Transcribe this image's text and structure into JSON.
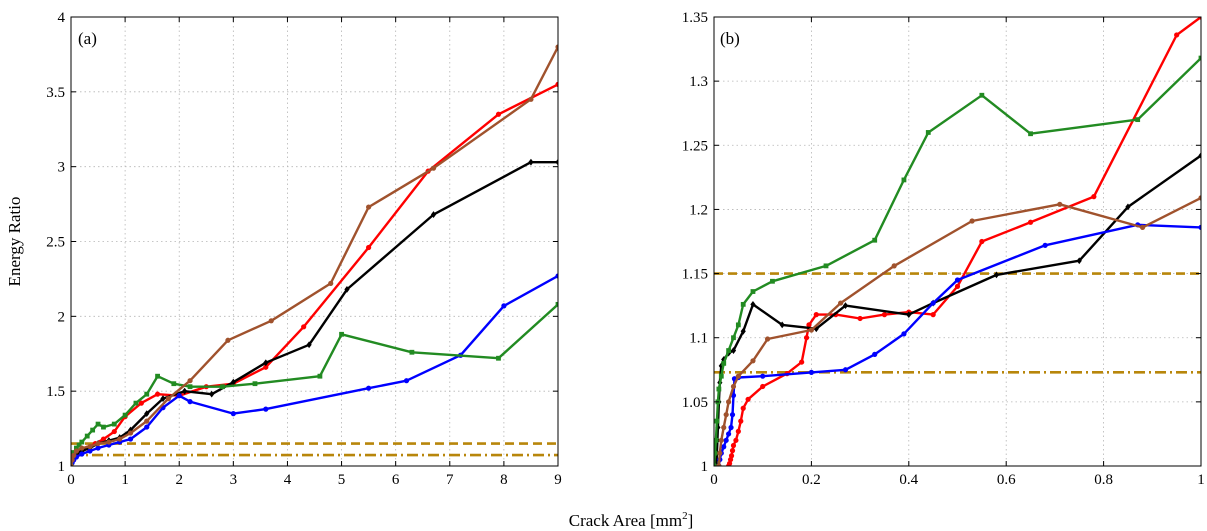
{
  "figure": {
    "xlabel_main": "Crack Area [mm",
    "xlabel_sup": "2",
    "xlabel_close": "]"
  },
  "chart_data": [
    {
      "type": "line",
      "panel_label": "(a)",
      "xlabel": "",
      "ylabel": "Energy Ratio",
      "xlim": [
        0,
        9
      ],
      "ylim": [
        1,
        4
      ],
      "xticks": [
        0,
        1,
        2,
        3,
        4,
        5,
        6,
        7,
        8,
        9
      ],
      "yticks": [
        1,
        1.5,
        2,
        2.5,
        3,
        3.5,
        4
      ],
      "xtick_labels": [
        "0",
        "1",
        "2",
        "3",
        "4",
        "5",
        "6",
        "7",
        "8",
        "9"
      ],
      "ytick_labels": [
        "1",
        "1.5",
        "2",
        "2.5",
        "3",
        "3.5",
        "4"
      ],
      "grid": true,
      "reference_lines": [
        {
          "y": 1.15,
          "style": "dashed",
          "color": "#b8860b"
        },
        {
          "y": 1.073,
          "style": "dash-dot",
          "color": "#b8860b"
        }
      ],
      "series": [
        {
          "color": "#ff0000",
          "marker": "circle",
          "x": [
            0,
            0.02,
            0.05,
            0.1,
            0.2,
            0.3,
            0.45,
            0.6,
            0.8,
            1.0,
            1.3,
            1.6,
            2.0,
            2.5,
            3.0,
            3.6,
            4.3,
            5.5,
            6.6,
            7.9,
            9.0
          ],
          "y": [
            1.0,
            1.03,
            1.06,
            1.08,
            1.1,
            1.12,
            1.15,
            1.18,
            1.23,
            1.33,
            1.42,
            1.48,
            1.47,
            1.53,
            1.55,
            1.66,
            1.93,
            2.46,
            2.97,
            3.35,
            3.55
          ]
        },
        {
          "color": "#000000",
          "marker": "diamond",
          "x": [
            0,
            0.02,
            0.05,
            0.1,
            0.2,
            0.35,
            0.5,
            0.7,
            0.9,
            1.1,
            1.4,
            1.7,
            2.1,
            2.6,
            3.0,
            3.6,
            4.4,
            5.1,
            6.7,
            8.5,
            9.0
          ],
          "y": [
            1.0,
            1.04,
            1.06,
            1.08,
            1.1,
            1.12,
            1.15,
            1.17,
            1.19,
            1.24,
            1.35,
            1.45,
            1.5,
            1.48,
            1.56,
            1.69,
            1.81,
            2.18,
            2.68,
            3.03,
            3.03
          ]
        },
        {
          "color": "#0000ff",
          "marker": "circle",
          "x": [
            0,
            0.02,
            0.05,
            0.1,
            0.2,
            0.35,
            0.5,
            0.7,
            0.9,
            1.1,
            1.4,
            1.7,
            2.0,
            2.2,
            3.0,
            3.6,
            5.5,
            6.2,
            7.2,
            8.0,
            9.0
          ],
          "y": [
            1.0,
            1.02,
            1.04,
            1.06,
            1.08,
            1.1,
            1.12,
            1.14,
            1.16,
            1.18,
            1.26,
            1.39,
            1.47,
            1.43,
            1.35,
            1.38,
            1.52,
            1.57,
            1.74,
            2.07,
            2.27
          ]
        },
        {
          "color": "#228b22",
          "marker": "square",
          "x": [
            0,
            0.02,
            0.05,
            0.1,
            0.15,
            0.2,
            0.3,
            0.4,
            0.5,
            0.6,
            0.8,
            1.0,
            1.2,
            1.4,
            1.6,
            1.9,
            2.2,
            2.8,
            3.4,
            4.6,
            5.0,
            6.3,
            7.9,
            9.0
          ],
          "y": [
            1.0,
            1.05,
            1.09,
            1.12,
            1.14,
            1.16,
            1.2,
            1.24,
            1.28,
            1.26,
            1.28,
            1.34,
            1.42,
            1.48,
            1.6,
            1.55,
            1.53,
            1.53,
            1.55,
            1.6,
            1.88,
            1.76,
            1.72,
            2.08
          ]
        },
        {
          "color": "#a0522d",
          "marker": "circle",
          "x": [
            0,
            0.02,
            0.05,
            0.1,
            0.2,
            0.35,
            0.5,
            0.7,
            0.9,
            1.1,
            1.4,
            1.8,
            2.2,
            2.9,
            3.7,
            4.8,
            5.5,
            6.7,
            8.5,
            9.0
          ],
          "y": [
            1.0,
            1.04,
            1.07,
            1.1,
            1.12,
            1.13,
            1.15,
            1.16,
            1.18,
            1.22,
            1.3,
            1.45,
            1.57,
            1.84,
            1.97,
            2.22,
            2.73,
            2.99,
            3.45,
            3.8
          ]
        }
      ]
    },
    {
      "type": "line",
      "panel_label": "(b)",
      "xlabel": "",
      "ylabel": "",
      "xlim": [
        0,
        1
      ],
      "ylim": [
        1,
        1.35
      ],
      "xticks": [
        0,
        0.2,
        0.4,
        0.6,
        0.8,
        1
      ],
      "yticks": [
        1,
        1.05,
        1.1,
        1.15,
        1.2,
        1.25,
        1.3,
        1.35
      ],
      "xtick_labels": [
        "0",
        "0.2",
        "0.4",
        "0.6",
        "0.8",
        "1"
      ],
      "ytick_labels": [
        "1",
        "1.05",
        "1.1",
        "1.15",
        "1.2",
        "1.25",
        "1.3",
        "1.35"
      ],
      "grid": true,
      "reference_lines": [
        {
          "y": 1.15,
          "style": "dashed",
          "color": "#b8860b"
        },
        {
          "y": 1.073,
          "style": "dash-dot",
          "color": "#b8860b"
        }
      ],
      "series": [
        {
          "color": "#ff0000",
          "marker": "circle",
          "x": [
            0.03,
            0.032,
            0.034,
            0.036,
            0.038,
            0.04,
            0.045,
            0.05,
            0.055,
            0.06,
            0.07,
            0.1,
            0.15,
            0.18,
            0.19,
            0.195,
            0.21,
            0.25,
            0.3,
            0.35,
            0.4,
            0.45,
            0.5,
            0.55,
            0.65,
            0.78,
            0.95,
            1.0
          ],
          "y": [
            1.0,
            1.002,
            1.005,
            1.008,
            1.012,
            1.016,
            1.02,
            1.027,
            1.035,
            1.045,
            1.052,
            1.062,
            1.072,
            1.081,
            1.1,
            1.11,
            1.118,
            1.118,
            1.115,
            1.118,
            1.12,
            1.118,
            1.14,
            1.175,
            1.19,
            1.21,
            1.336,
            1.35
          ]
        },
        {
          "color": "#000000",
          "marker": "diamond",
          "x": [
            0.005,
            0.006,
            0.007,
            0.008,
            0.01,
            0.012,
            0.015,
            0.02,
            0.03,
            0.04,
            0.06,
            0.08,
            0.14,
            0.21,
            0.27,
            0.4,
            0.45,
            0.58,
            0.75,
            0.85,
            1.0
          ],
          "y": [
            1.0,
            1.01,
            1.02,
            1.03,
            1.05,
            1.065,
            1.078,
            1.083,
            1.088,
            1.09,
            1.105,
            1.126,
            1.11,
            1.107,
            1.125,
            1.118,
            1.127,
            1.149,
            1.16,
            1.202,
            1.242
          ]
        },
        {
          "color": "#0000ff",
          "marker": "circle",
          "x": [
            0.01,
            0.012,
            0.015,
            0.02,
            0.025,
            0.03,
            0.035,
            0.038,
            0.04,
            0.042,
            0.05,
            0.1,
            0.2,
            0.27,
            0.33,
            0.39,
            0.45,
            0.5,
            0.68,
            0.87,
            1.0
          ],
          "y": [
            1.0,
            1.005,
            1.01,
            1.015,
            1.02,
            1.025,
            1.03,
            1.04,
            1.055,
            1.068,
            1.069,
            1.07,
            1.073,
            1.075,
            1.087,
            1.103,
            1.127,
            1.145,
            1.172,
            1.188,
            1.186
          ]
        },
        {
          "color": "#228b22",
          "marker": "square",
          "x": [
            0.0,
            0.002,
            0.004,
            0.006,
            0.008,
            0.01,
            0.015,
            0.02,
            0.03,
            0.04,
            0.05,
            0.06,
            0.08,
            0.12,
            0.23,
            0.33,
            0.39,
            0.44,
            0.55,
            0.65,
            0.87,
            1.0
          ],
          "y": [
            1.0,
            1.01,
            1.02,
            1.035,
            1.05,
            1.06,
            1.07,
            1.08,
            1.09,
            1.1,
            1.11,
            1.126,
            1.136,
            1.144,
            1.156,
            1.176,
            1.223,
            1.26,
            1.289,
            1.259,
            1.27,
            1.318
          ]
        },
        {
          "color": "#a0522d",
          "marker": "circle",
          "x": [
            0.01,
            0.012,
            0.015,
            0.02,
            0.025,
            0.03,
            0.04,
            0.05,
            0.08,
            0.11,
            0.2,
            0.26,
            0.37,
            0.53,
            0.71,
            0.88,
            1.0
          ],
          "y": [
            1.0,
            1.01,
            1.02,
            1.03,
            1.04,
            1.05,
            1.062,
            1.07,
            1.082,
            1.099,
            1.106,
            1.127,
            1.156,
            1.191,
            1.204,
            1.186,
            1.209
          ]
        }
      ]
    }
  ]
}
